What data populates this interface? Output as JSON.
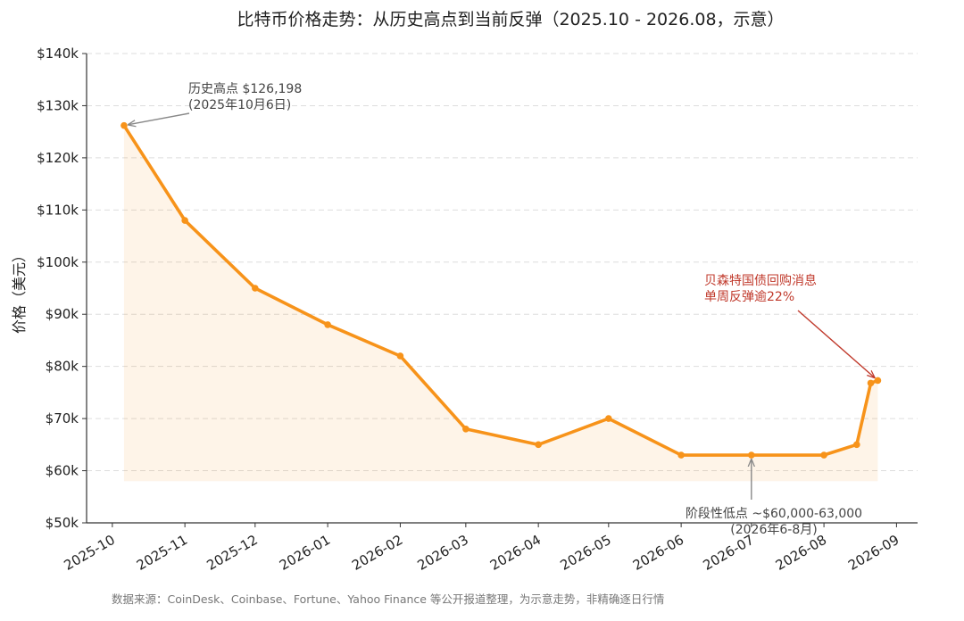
{
  "chart_data": {
    "type": "line",
    "title": "比特币价格走势：从历史高点到当前反弹（2025.10 - 2026.08，示意）",
    "xlabel": "",
    "ylabel": "价格（美元）",
    "ylim": [
      50000,
      140000
    ],
    "y_ticks": [
      50000,
      60000,
      70000,
      80000,
      90000,
      100000,
      110000,
      120000,
      130000,
      140000
    ],
    "y_tick_labels": [
      "$50k",
      "$60k",
      "$70k",
      "$80k",
      "$90k",
      "$100k",
      "$110k",
      "$120k",
      "$130k",
      "$140k"
    ],
    "x_ticks": [
      "2025-10-01",
      "2025-11-01",
      "2025-12-01",
      "2026-01-01",
      "2026-02-01",
      "2026-03-01",
      "2026-04-01",
      "2026-05-01",
      "2026-06-01",
      "2026-07-01",
      "2026-08-01",
      "2026-09-01"
    ],
    "x_tick_labels": [
      "2025-10",
      "2025-11",
      "2025-12",
      "2026-01",
      "2026-02",
      "2026-03",
      "2026-04",
      "2026-05",
      "2026-06",
      "2026-07",
      "2026-08",
      "2026-09"
    ],
    "xlim": [
      "2025-09-20",
      "2026-09-10"
    ],
    "grid": "horizontal dashed",
    "series": [
      {
        "color": "#f7931a",
        "points": [
          {
            "x": "2025-10-06",
            "y": 126198
          },
          {
            "x": "2025-11-01",
            "y": 108000
          },
          {
            "x": "2025-12-01",
            "y": 95000
          },
          {
            "x": "2026-01-01",
            "y": 88000
          },
          {
            "x": "2026-02-01",
            "y": 82000
          },
          {
            "x": "2026-03-01",
            "y": 68000
          },
          {
            "x": "2026-04-01",
            "y": 65000
          },
          {
            "x": "2026-05-01",
            "y": 70000
          },
          {
            "x": "2026-06-01",
            "y": 63000
          },
          {
            "x": "2026-07-01",
            "y": 63000
          },
          {
            "x": "2026-08-01",
            "y": 63000
          },
          {
            "x": "2026-08-15",
            "y": 65000
          },
          {
            "x": "2026-08-21",
            "y": 76800
          },
          {
            "x": "2026-08-24",
            "y": 77300
          }
        ]
      }
    ],
    "fill_baseline": 58000,
    "annotations": [
      {
        "lines": [
          "历史高点 $126,198",
          "(2025年10月6日)"
        ],
        "target": {
          "x": "2025-10-06",
          "y": 126198
        },
        "color": "#444444",
        "arrow_color": "#888888"
      },
      {
        "lines": [
          "贝森特国债回购消息",
          "单周反弹逾22%"
        ],
        "target": {
          "x": "2026-08-24",
          "y": 77300
        },
        "color": "#c0392b",
        "arrow_color": "#c0392b"
      },
      {
        "lines": [
          "阶段性低点 ~$60,000-63,000",
          "(2026年6-8月)"
        ],
        "target": {
          "x": "2026-07-01",
          "y": 63000
        },
        "color": "#444444",
        "arrow_color": "#888888"
      }
    ],
    "source_note": "数据来源：CoinDesk、Coinbase、Fortune、Yahoo Finance 等公开报道整理，为示意走势，非精确逐日行情"
  }
}
